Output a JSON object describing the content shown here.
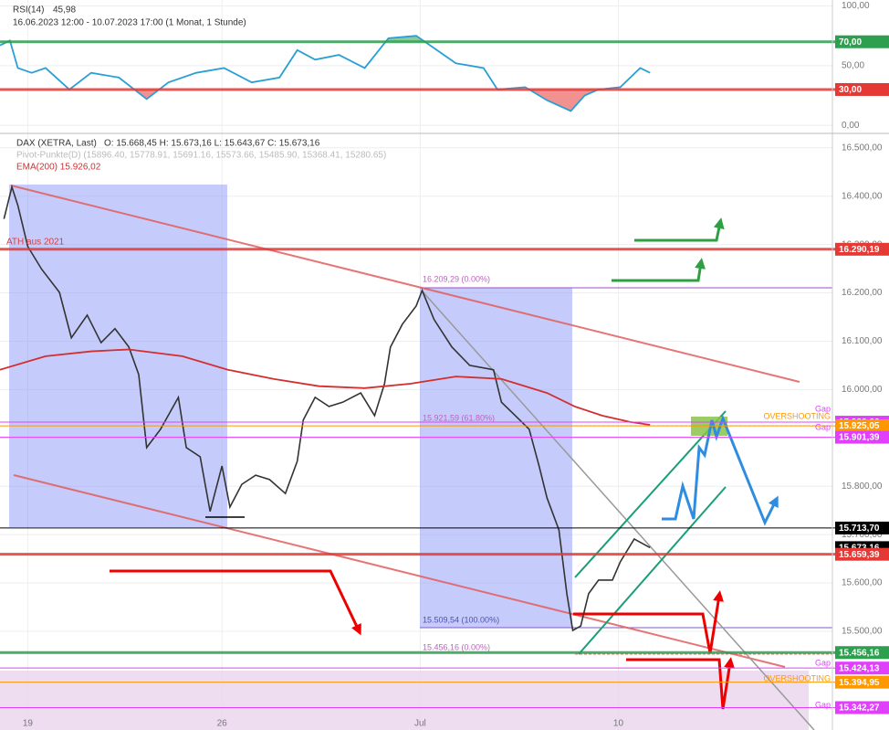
{
  "chart_data": [
    {
      "type": "line",
      "title": "RSI(14)",
      "title_value": "45,98",
      "subtitle": "16.06.2023 12:00 - 10.07.2023 17:00 (1 Monat, 1 Stunde)",
      "x": [
        0,
        5,
        9,
        16,
        23,
        35,
        46,
        60,
        74,
        85,
        99,
        113,
        127,
        141,
        150,
        159,
        171,
        184,
        196,
        210,
        217,
        230,
        244,
        251,
        265,
        276,
        288,
        295,
        302,
        313,
        323,
        328
      ],
      "series": [
        {
          "name": "RSI(14)",
          "color": "#2a9fd6",
          "values": [
            67,
            71,
            48,
            44,
            48,
            30,
            44,
            40,
            22,
            36,
            44,
            48,
            36,
            40,
            63,
            55,
            59,
            48,
            73,
            75,
            67,
            52,
            48,
            30,
            32,
            21,
            12,
            25,
            30,
            32,
            48,
            44
          ]
        }
      ],
      "xlim": [
        0,
        420
      ],
      "ylim": [
        -6,
        105
      ],
      "yticks": [
        {
          "value": 100,
          "label": "100,00"
        },
        {
          "value": 50,
          "label": "50,00"
        },
        {
          "value": 0,
          "label": "0,00"
        }
      ],
      "levels": [
        {
          "value": 70,
          "label": "70,00",
          "color": "#2e9e4f",
          "weight": "thick"
        },
        {
          "value": 30,
          "label": "30,00",
          "color": "#e53935",
          "weight": "thick"
        }
      ],
      "fill": true
    },
    {
      "type": "line",
      "ohlc": "O: 15.668,45 H: 15.673,16 L: 15.643,67 C: 15.673,16",
      "pivot_label": "Pivot-Punkte(D) (15896.40, 15778.91, 15691.16, 15573.66, 15485.90, 15368.41, 15280.65)",
      "series": [
        {
          "name": "DAX (XETRA, Last)",
          "color": "#333333",
          "x": [
            2,
            6,
            9,
            14,
            21,
            30,
            36,
            44,
            51,
            58,
            65,
            70,
            74,
            81,
            90,
            94,
            101,
            106,
            112,
            116,
            122,
            129,
            136,
            144,
            150,
            153,
            159,
            166,
            173,
            182,
            189,
            194,
            197,
            203,
            210,
            213,
            219,
            228,
            237,
            249,
            253,
            260,
            267,
            272,
            276,
            282,
            286,
            289,
            293,
            297,
            302,
            309,
            313,
            320,
            324,
            328
          ],
          "values": [
            16353,
            16419,
            16381,
            16296,
            16249,
            16201,
            16107,
            16154,
            16097,
            16126,
            16088,
            16031,
            15880,
            15918,
            15984,
            15880,
            15861,
            15748,
            15842,
            15757,
            15804,
            15823,
            15814,
            15785,
            15852,
            15937,
            15984,
            15965,
            15974,
            15993,
            15946,
            16012,
            16088,
            16135,
            16173,
            16205,
            16145,
            16088,
            16050,
            16041,
            15974,
            15946,
            15918,
            15842,
            15776,
            15710,
            15578,
            15502,
            15511,
            15578,
            15606,
            15606,
            15644,
            15691,
            15682,
            15673
          ]
        },
        {
          "name": "EMA(200) 15.926,02",
          "color": "#d32f2f",
          "x": [
            0,
            23,
            46,
            65,
            92,
            115,
            138,
            161,
            184,
            207,
            230,
            253,
            276,
            290,
            304,
            318,
            328
          ],
          "values": [
            16041,
            16069,
            16079,
            16083,
            16069,
            16041,
            16022,
            16007,
            16003,
            16012,
            16027,
            16022,
            15993,
            15965,
            15946,
            15933,
            15927
          ]
        }
      ],
      "xlim": [
        0,
        420
      ],
      "ylim": [
        15296,
        16526
      ],
      "xticks": [
        {
          "value": 14,
          "label": "19"
        },
        {
          "value": 112,
          "label": "26"
        },
        {
          "value": 212,
          "label": "Jul"
        },
        {
          "value": 312,
          "label": "10"
        }
      ],
      "yticks": [
        {
          "value": 15500,
          "label": "15.500,00"
        },
        {
          "value": 15600,
          "label": "15.600,00"
        },
        {
          "value": 15700,
          "label": "15.700,00"
        },
        {
          "value": 15800,
          "label": "15.800,00"
        },
        {
          "value": 15900,
          "label": "15.900,00"
        },
        {
          "value": 16000,
          "label": "16.000,00"
        },
        {
          "value": 16100,
          "label": "16.100,00"
        },
        {
          "value": 16200,
          "label": "16.200,00"
        },
        {
          "value": 16300,
          "label": "16.300,00"
        },
        {
          "value": 16400,
          "label": "16.400,00"
        },
        {
          "value": 16500,
          "label": "16.500,00"
        }
      ],
      "grid": true,
      "levels": [
        {
          "value": 16290.19,
          "label": "16.290,19",
          "color": "#e53935",
          "weight": "thick"
        },
        {
          "value": 15932.66,
          "label": "15.932,66",
          "color": "#e040fb",
          "weight": "thin"
        },
        {
          "value": 15925.05,
          "label": "15.925,05",
          "color": "#ff9800",
          "weight": "thin"
        },
        {
          "value": 15901.39,
          "label": "15.901,39",
          "color": "#e040fb",
          "weight": "thin"
        },
        {
          "value": 15713.7,
          "label": "15.713,70",
          "color": "#000000",
          "weight": "thin"
        },
        {
          "value": 15673.16,
          "label": "15.673,16",
          "color": "#000000",
          "weight": "none"
        },
        {
          "value": 15659.39,
          "label": "15.659,39",
          "color": "#e53935",
          "weight": "thick"
        },
        {
          "value": 15456.16,
          "label": "15.456,16",
          "color": "#2e9e4f",
          "weight": "thick"
        },
        {
          "value": 15424.13,
          "label": "15.424,13",
          "color": "#e040fb",
          "weight": "thin"
        },
        {
          "value": 15394.95,
          "label": "15.394,95",
          "color": "#ff9800",
          "weight": "thin"
        },
        {
          "value": 15342.27,
          "label": "15.342,27",
          "color": "#e040fb",
          "weight": "thin"
        }
      ],
      "annotations": [
        "ATH aus 2021",
        "16.209,29 (0.00%)",
        "15.921,59 (61.80%)",
        "15.509,54 (100.00%)",
        "15.456,16 (0.00%)",
        "OVERSHOOTING",
        "OVERSHOOTING",
        "Gap",
        "Gap",
        "Gap",
        "Gap"
      ]
    }
  ]
}
